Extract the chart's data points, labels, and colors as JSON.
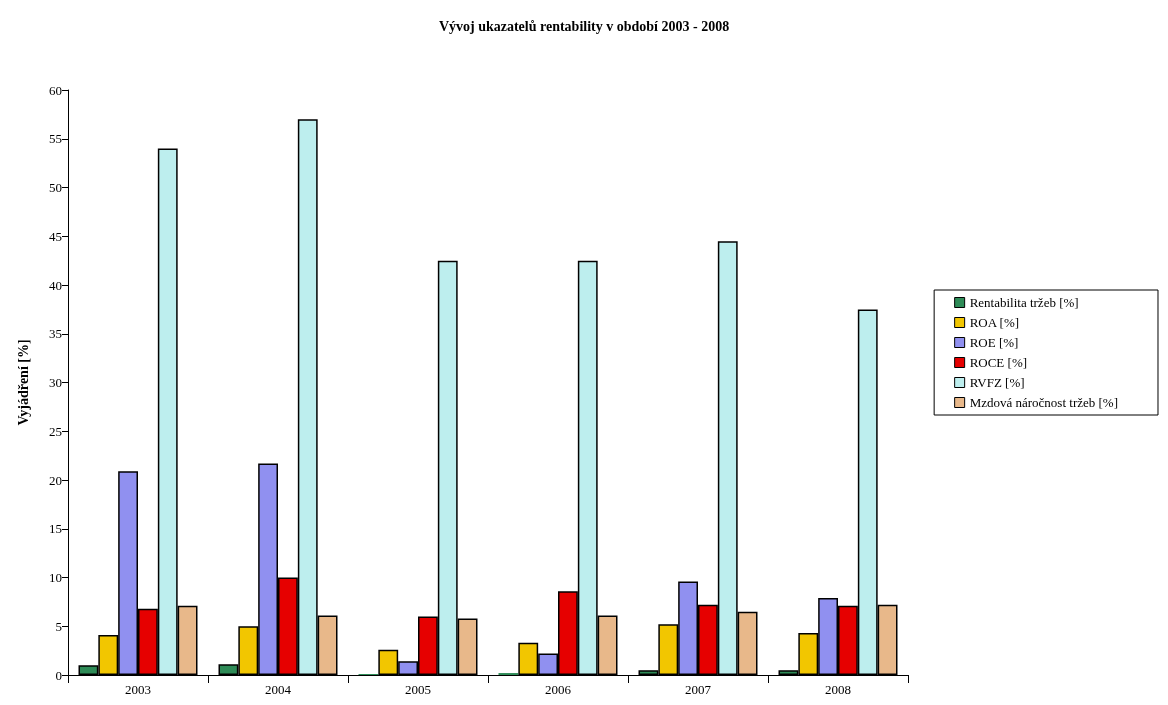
{
  "chart_data": {
    "type": "bar",
    "title": "Vývoj ukazatelů rentability v období 2003 - 2008",
    "ylabel": "Vyjádření [%]",
    "categories": [
      "2003",
      "2004",
      "2005",
      "2006",
      "2007",
      "2008"
    ],
    "series": [
      {
        "name": "Rentabilita tržeb [%]",
        "color": "#2e8b57",
        "values": [
          1.0,
          1.1,
          0.1,
          0.2,
          0.5,
          0.5
        ]
      },
      {
        "name": "ROA [%]",
        "color": "#f2c600",
        "values": [
          4.1,
          5.0,
          2.6,
          3.3,
          5.2,
          4.3
        ]
      },
      {
        "name": "ROE [%]",
        "color": "#9090f0",
        "values": [
          20.9,
          21.7,
          1.4,
          2.2,
          9.6,
          7.9
        ]
      },
      {
        "name": "ROCE [%]",
        "color": "#e60000",
        "values": [
          6.8,
          10.0,
          6.0,
          8.6,
          7.2,
          7.1
        ]
      },
      {
        "name": "RVFZ [%]",
        "color": "#bdeeee",
        "values": [
          54,
          57,
          42.5,
          42.5,
          44.5,
          37.5
        ]
      },
      {
        "name": "Mzdová náročnost tržeb [%]",
        "color": "#e8b88a",
        "values": [
          7.1,
          6.1,
          5.8,
          6.1,
          6.5,
          7.2
        ]
      }
    ],
    "ylim": [
      0,
      60
    ],
    "yticks": [
      0,
      5,
      10,
      15,
      20,
      25,
      30,
      35,
      40,
      45,
      50,
      55,
      60
    ],
    "grid": false,
    "legend": "right"
  }
}
